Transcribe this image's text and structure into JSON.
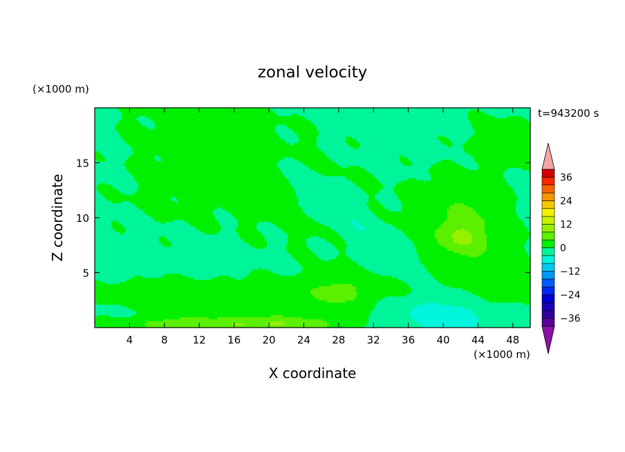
{
  "chart_data": {
    "type": "heatmap",
    "title": "zonal velocity",
    "xlabel": "X coordinate",
    "ylabel": "Z coordinate",
    "x_unit": "(×1000 m)",
    "y_unit": "(×1000 m)",
    "time_label": "t=943200 s",
    "xlim": [
      0,
      50
    ],
    "ylim": [
      0,
      20
    ],
    "x_ticks": [
      4,
      8,
      12,
      16,
      20,
      24,
      28,
      32,
      36,
      40,
      44,
      48
    ],
    "y_ticks": [
      5,
      10,
      15
    ],
    "colorbar": {
      "min": -40,
      "max": 40,
      "step": 4,
      "labels": [
        36,
        24,
        12,
        0,
        -12,
        -24,
        -36
      ],
      "over_color": "#f4a6a6",
      "under_color": "#8a10a8"
    },
    "field": {
      "background_value": -1,
      "features": [
        {
          "cx": 18,
          "cz": 15,
          "sx": 18,
          "sz": 5.5,
          "rot": -25,
          "value": 2.5
        },
        {
          "cx": 8,
          "cz": 12,
          "sx": 8,
          "sz": 4,
          "rot": 0,
          "value": 1.2
        },
        {
          "cx": 47,
          "cz": 17,
          "sx": 5,
          "sz": 3,
          "rot": 0,
          "value": 2
        },
        {
          "cx": 42.5,
          "cz": 9,
          "sx": 5.5,
          "sz": 4,
          "rot": -20,
          "value": 6
        },
        {
          "cx": 42,
          "cz": 8.2,
          "sx": 2,
          "sz": 1.2,
          "rot": 0,
          "value": 4.5
        },
        {
          "cx": 29,
          "cz": 10,
          "sx": 9,
          "sz": 1.6,
          "rot": -32,
          "value": -4
        },
        {
          "cx": 40,
          "cz": 1.2,
          "sx": 6,
          "sz": 1.8,
          "rot": 0,
          "value": -6
        },
        {
          "cx": 20,
          "cz": 3,
          "sx": 20,
          "sz": 1.6,
          "rot": 0,
          "value": 3
        },
        {
          "cx": 28,
          "cz": 3.3,
          "sx": 3,
          "sz": 1.6,
          "rot": 0,
          "value": 4
        },
        {
          "cx": 20,
          "cz": 0.3,
          "sx": 8,
          "sz": 0.8,
          "rot": 0,
          "value": 9
        },
        {
          "cx": 9,
          "cz": 0.3,
          "sx": 6,
          "sz": 0.7,
          "rot": 0,
          "value": 6
        },
        {
          "cx": 46,
          "cz": 3,
          "sx": 4,
          "sz": 2,
          "rot": 0,
          "value": 2
        },
        {
          "cx": 6,
          "cz": 3,
          "sx": 4,
          "sz": 1,
          "rot": 0,
          "value": 2.5
        }
      ]
    }
  }
}
